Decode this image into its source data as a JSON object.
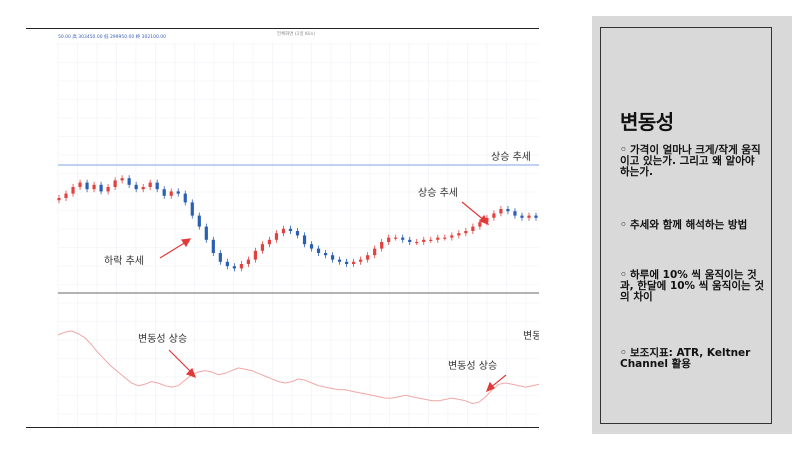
{
  "colors": {
    "candle_up": "#e0433f",
    "candle_down": "#2b5fb4",
    "level_line_upper": "#9bb7e8",
    "level_line_lower": "#9a9a9a",
    "volatility_line": "#f2a6a6",
    "arrow": "#e03a3a",
    "panel_bg": "#d9d9d9"
  },
  "header": {
    "legend_text": "50.00  高 303450.00  低 299950.00  終 302100.00",
    "chart_title": "전체화면 (1일 Klin)"
  },
  "annotations": {
    "upper_level": "상승 추세",
    "uptrend": "상승 추세",
    "downtrend": "하락 추세",
    "vol_rise_1": "변동성 상승",
    "vol_rise_2": "변동성 상승",
    "vol_cut": "변동"
  },
  "panel": {
    "title": "변동성",
    "bullets": [
      "가격이 얼마나 크게/작게 움직이고 있는가. 그리고 왜 알아야 하는가.",
      "추세와 함께 해석하는 방법",
      "하루에 10% 씩 움직이는 것과, 한달에 10% 씩 움직이는 것의 차이",
      "보조지표: ATR, Keltner Channel 활용"
    ]
  },
  "chart_data": {
    "type": "line",
    "series": [
      {
        "values": [
          40,
          42,
          45,
          47,
          44,
          46,
          43,
          45,
          48,
          49,
          46,
          44,
          45,
          47,
          44,
          41,
          43,
          42,
          38,
          32,
          27,
          21,
          15,
          11,
          9,
          8,
          10,
          12,
          16,
          19,
          21,
          24,
          26,
          25,
          23,
          19,
          17,
          15,
          14,
          12,
          11,
          10,
          11,
          12,
          14,
          17,
          20,
          22,
          22,
          21,
          20,
          20,
          21,
          21,
          22,
          22,
          23,
          24,
          25,
          27,
          29,
          31,
          33,
          35,
          34,
          32,
          31,
          32,
          31
        ]
      },
      {
        "values": [
          62,
          64,
          65,
          63,
          60,
          55,
          49,
          44,
          39,
          35,
          31,
          27,
          25,
          26,
          28,
          27,
          25,
          24,
          25,
          29,
          33,
          35,
          36,
          35,
          33,
          34,
          36,
          38,
          37,
          36,
          34,
          32,
          30,
          28,
          27,
          28,
          30,
          29,
          27,
          25,
          24,
          23,
          22,
          22,
          21,
          20,
          19,
          18,
          17,
          16,
          16,
          17,
          18,
          17,
          16,
          15,
          14,
          14,
          15,
          16,
          15,
          14,
          12,
          13,
          17,
          22,
          26,
          27,
          26,
          25,
          24,
          25,
          26
        ]
      }
    ]
  }
}
